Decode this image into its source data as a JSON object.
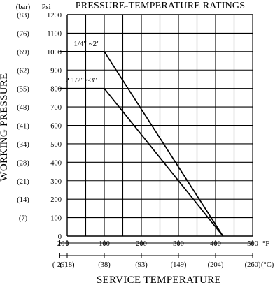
{
  "chart_data": {
    "type": "line",
    "title": "PRESSURE-TEMPERATURE RATINGS",
    "xlabel": "SERVICE TEMPERATURE",
    "ylabel": "WORKING PRESSURE",
    "x_unit": "°F",
    "x_unit_secondary": "(°C)",
    "y_unit": "Psi",
    "y_unit_secondary": "(bar)",
    "xlim": [
      -20,
      500
    ],
    "ylim": [
      0,
      1200
    ],
    "grid": true,
    "x_ticks": [
      "-20",
      "0",
      "100",
      "200",
      "300",
      "400",
      "500"
    ],
    "x_ticks_secondary": [
      "(-29)",
      "(-18)",
      "(38)",
      "(93)",
      "(149)",
      "(204)",
      "(260)"
    ],
    "y_ticks": [
      "0",
      "100",
      "200",
      "300",
      "400",
      "500",
      "600",
      "700",
      "800",
      "900",
      "1000",
      "1100",
      "1200"
    ],
    "y_ticks_secondary": [
      "(7)",
      "(14)",
      "(21)",
      "(28)",
      "(34)",
      "(41)",
      "(48)",
      "(55)",
      "(62)",
      "(69)",
      "(76)",
      "(83)"
    ],
    "series": [
      {
        "name": "1/4\" ~2\"",
        "x": [
          -20,
          100,
          420
        ],
        "y": [
          1000,
          1000,
          0
        ]
      },
      {
        "name": "2 1/2\" ~3\"",
        "x": [
          -20,
          100,
          420
        ],
        "y": [
          800,
          800,
          0
        ]
      }
    ]
  }
}
